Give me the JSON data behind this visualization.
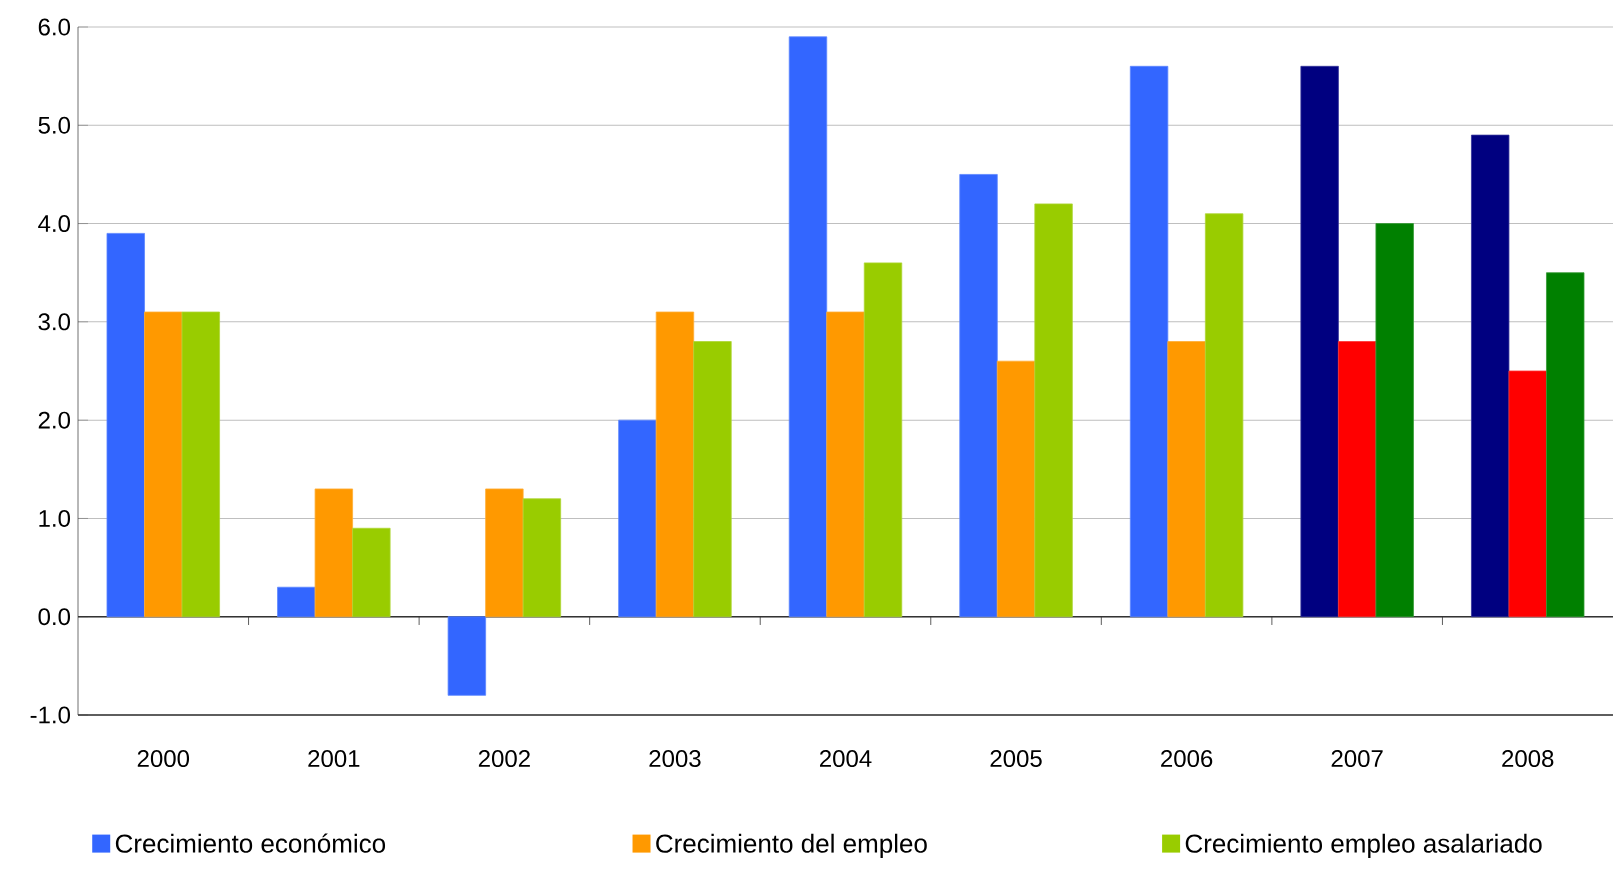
{
  "chart_data": {
    "type": "bar",
    "categories": [
      "2000",
      "2001",
      "2002",
      "2003",
      "2004",
      "2005",
      "2006",
      "2007",
      "2008"
    ],
    "series": [
      {
        "name": "Crecimiento económico",
        "color": "#3366ff",
        "colors": [
          "#3366ff",
          "#3366ff",
          "#3366ff",
          "#3366ff",
          "#3366ff",
          "#3366ff",
          "#3366ff",
          "#000080",
          "#000080"
        ],
        "values": [
          3.9,
          0.3,
          -0.8,
          2.0,
          5.9,
          4.5,
          5.6,
          5.6,
          4.9
        ]
      },
      {
        "name": "Crecimiento del empleo",
        "color": "#ff9900",
        "colors": [
          "#ff9900",
          "#ff9900",
          "#ff9900",
          "#ff9900",
          "#ff9900",
          "#ff9900",
          "#ff9900",
          "#ff0000",
          "#ff0000"
        ],
        "values": [
          3.1,
          1.3,
          1.3,
          3.1,
          3.1,
          2.6,
          2.8,
          2.8,
          2.5
        ]
      },
      {
        "name": "Crecimiento empleo asalariado",
        "color": "#99cc00",
        "colors": [
          "#99cc00",
          "#99cc00",
          "#99cc00",
          "#99cc00",
          "#99cc00",
          "#99cc00",
          "#99cc00",
          "#008000",
          "#008000"
        ],
        "values": [
          3.1,
          0.9,
          1.2,
          2.8,
          3.6,
          4.2,
          4.1,
          4.0,
          3.5
        ]
      }
    ],
    "ylim": [
      -1,
      6
    ],
    "yticks": [
      {
        "value": -1,
        "label": "-1.0"
      },
      {
        "value": 0,
        "label": "0.0"
      },
      {
        "value": 1,
        "label": "1.0"
      },
      {
        "value": 2,
        "label": "2.0"
      },
      {
        "value": 3,
        "label": "3.0"
      },
      {
        "value": 4,
        "label": "4.0"
      },
      {
        "value": 5,
        "label": "5.0"
      },
      {
        "value": 6,
        "label": "6.0"
      }
    ],
    "grid": "y",
    "legend": "bottom"
  }
}
